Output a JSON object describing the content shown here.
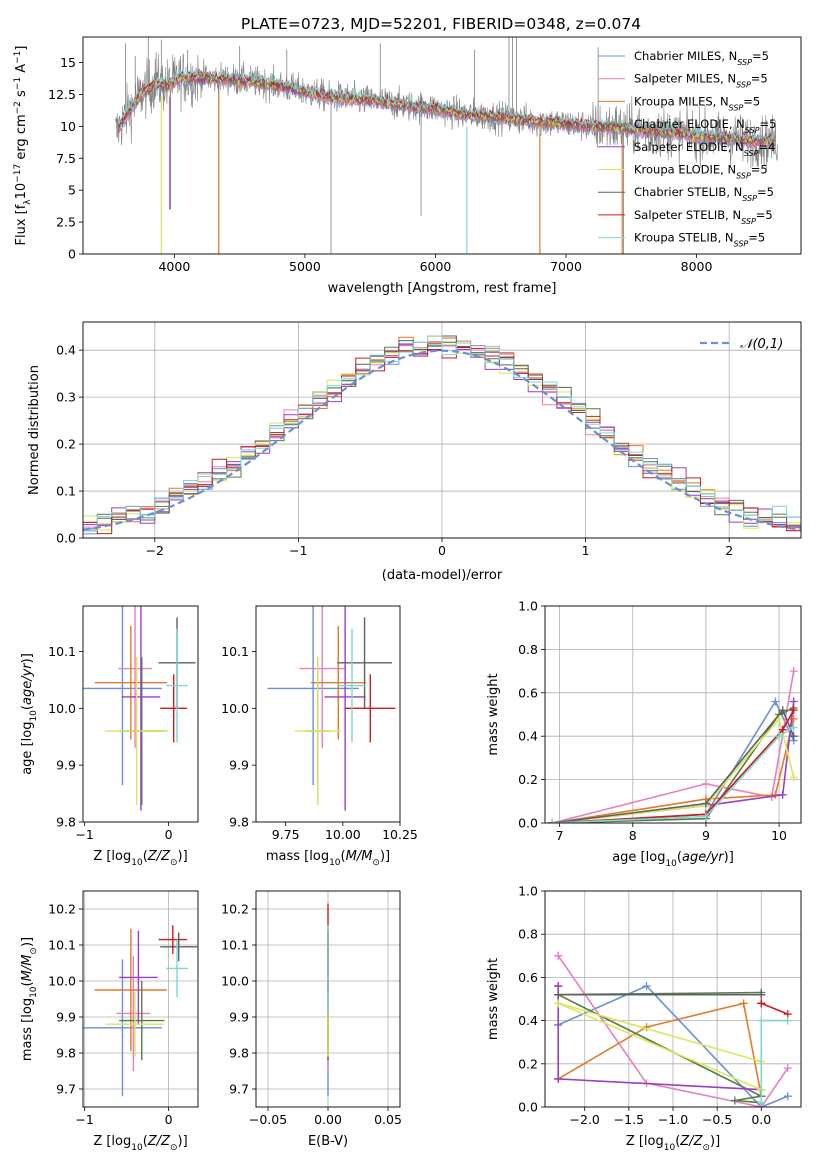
{
  "figure": {
    "title": "PLATE=0723, MJD=52201, FIBERID=0348, z=0.074"
  },
  "palette": [
    "#6a8fd8",
    "#e87fbf",
    "#e07b2a",
    "#5a7a4a",
    "#9a3fbf",
    "#d8e85a",
    "#606060",
    "#c81e1e",
    "#7fd6d6"
  ],
  "chart_data": [
    {
      "id": "spectrum",
      "type": "line",
      "xlabel": "wavelength [Angstrom, rest frame]",
      "ylabel": "Flux [f_λ 10^-17 erg cm^-2 s^-1 A^-1]",
      "xlim": [
        3300,
        8800
      ],
      "ylim": [
        0,
        17
      ],
      "xticks": [
        4000,
        5000,
        6000,
        7000,
        8000
      ],
      "yticks": [
        0.0,
        2.5,
        5.0,
        7.5,
        10.0,
        12.5,
        15.0
      ],
      "grid": false,
      "legend_position": "top-right",
      "series": [
        {
          "name": "Chabrier MILES, N_SSP=5"
        },
        {
          "name": "Salpeter MILES, N_SSP=5"
        },
        {
          "name": "Kroupa MILES, N_SSP=5"
        },
        {
          "name": "Chabrier ELODIE, N_SSP=5"
        },
        {
          "name": "Salpeter ELODIE, N_SSP=4"
        },
        {
          "name": "Kroupa ELODIE, N_SSP=5"
        },
        {
          "name": "Chabrier STELIB, N_SSP=5"
        },
        {
          "name": "Salpeter STELIB, N_SSP=5"
        },
        {
          "name": "Kroupa STELIB, N_SSP=5"
        }
      ],
      "model_continuum": {
        "x": [
          3550,
          3650,
          3750,
          3850,
          3950,
          4050,
          4200,
          4400,
          4600,
          4800,
          5000,
          5200,
          5400,
          5600,
          5800,
          6000,
          6200,
          6400,
          6600,
          6800,
          7000,
          7200,
          7400,
          7600,
          7800,
          8000,
          8200,
          8400,
          8600
        ],
        "y": [
          9.5,
          11.2,
          12.6,
          13.4,
          13.2,
          13.8,
          13.8,
          13.7,
          13.5,
          13.2,
          12.7,
          12.3,
          12.1,
          11.9,
          11.6,
          11.4,
          11.0,
          10.8,
          10.6,
          10.4,
          10.2,
          10.0,
          9.9,
          9.7,
          9.5,
          9.3,
          9.1,
          8.9,
          8.8
        ]
      },
      "observed_spikes": {
        "x": [
          3625,
          3700,
          3800,
          3860,
          3900,
          3970,
          4102,
          4340,
          4500,
          4861,
          5200,
          5577,
          5890,
          6300,
          6563,
          6590,
          6620,
          6800,
          7246,
          7440
        ],
        "y": [
          16.5,
          15.5,
          17.0,
          15.8,
          16.8,
          3.5,
          16.0,
          0.0,
          16.3,
          16.0,
          0.0,
          16.5,
          3.0,
          16.0,
          17.0,
          17.0,
          17.0,
          0.0,
          16.2,
          0.0
        ]
      }
    },
    {
      "id": "residuals",
      "type": "step-histogram",
      "xlabel": "(data-model)/error",
      "ylabel": "Normed distribution",
      "xlim": [
        -2.5,
        2.5
      ],
      "ylim": [
        0,
        0.46
      ],
      "xticks": [
        -2,
        -1,
        0,
        1,
        2
      ],
      "yticks": [
        0.0,
        0.1,
        0.2,
        0.3,
        0.4
      ],
      "grid": true,
      "legend": [
        {
          "name": "𝒩(0,1)"
        }
      ],
      "legend_position": "top-right",
      "bin_width": 0.1,
      "bin_start": -2.5
    },
    {
      "id": "age_vs_Z",
      "type": "errorbar",
      "xlabel": "Z [log10(Z/Z⊙)]",
      "ylabel": "age [log10(age/yr)]",
      "xlim": [
        -1.02,
        0.35
      ],
      "ylim": [
        9.8,
        10.18
      ],
      "xticks": [
        -1,
        0
      ],
      "yticks": [
        9.8,
        9.9,
        10.0,
        10.1
      ],
      "grid": false,
      "points": [
        {
          "x": -0.55,
          "xerr": 0.47,
          "y": 10.035,
          "yerr": 0.17
        },
        {
          "x": -0.4,
          "xerr": 0.2,
          "y": 10.07,
          "yerr": 0.14
        },
        {
          "x": -0.45,
          "xerr": 0.43,
          "y": 10.045,
          "yerr": 0.1
        },
        {
          "x": -0.32,
          "xerr": 0.27,
          "y": 9.96,
          "yerr": 0.13
        },
        {
          "x": -0.33,
          "xerr": 0.23,
          "y": 10.02,
          "yerr": 0.2
        },
        {
          "x": -0.38,
          "xerr": 0.38,
          "y": 9.96,
          "yerr": 0.13
        },
        {
          "x": 0.1,
          "xerr": 0.22,
          "y": 10.08,
          "yerr": 0.08
        },
        {
          "x": 0.06,
          "xerr": 0.16,
          "y": 10.0,
          "yerr": 0.06
        },
        {
          "x": 0.1,
          "xerr": 0.13,
          "y": 10.04,
          "yerr": 0.1
        }
      ]
    },
    {
      "id": "age_vs_mass",
      "type": "errorbar",
      "xlabel": "mass [log10(M/M⊙)]",
      "ylabel": "",
      "xlim": [
        9.62,
        10.25
      ],
      "ylim": [
        9.8,
        10.18
      ],
      "xticks": [
        9.75,
        10.0,
        10.25
      ],
      "yticks": [
        9.8,
        9.9,
        10.0,
        10.1
      ],
      "grid": false,
      "points": [
        {
          "x": 9.87,
          "xerr": 0.2,
          "y": 10.035,
          "yerr": 0.17
        },
        {
          "x": 9.91,
          "xerr": 0.1,
          "y": 10.07,
          "yerr": 0.14
        },
        {
          "x": 9.98,
          "xerr": 0.12,
          "y": 10.045,
          "yerr": 0.1
        },
        {
          "x": 9.89,
          "xerr": 0.05,
          "y": 9.96,
          "yerr": 0.13
        },
        {
          "x": 10.01,
          "xerr": 0.09,
          "y": 10.02,
          "yerr": 0.2
        },
        {
          "x": 9.89,
          "xerr": 0.1,
          "y": 9.96,
          "yerr": 0.13
        },
        {
          "x": 10.095,
          "xerr": 0.12,
          "y": 10.08,
          "yerr": 0.08
        },
        {
          "x": 10.12,
          "xerr": 0.11,
          "y": 10.0,
          "yerr": 0.06
        },
        {
          "x": 10.04,
          "xerr": 0.06,
          "y": 10.04,
          "yerr": 0.1
        }
      ]
    },
    {
      "id": "massweight_vs_age",
      "type": "line",
      "xlabel": "age [log10(age/yr)]",
      "ylabel": "mass weight",
      "xlim": [
        6.8,
        10.3
      ],
      "ylim": [
        0,
        1.0
      ],
      "xticks": [
        7,
        8,
        9,
        10
      ],
      "yticks": [
        0.0,
        0.2,
        0.4,
        0.6,
        0.8,
        1.0
      ],
      "grid": true,
      "series": [
        {
          "x": [
            6.9,
            9.0,
            9.95,
            10.2
          ],
          "y": [
            0.0,
            0.04,
            0.56,
            0.38
          ]
        },
        {
          "x": [
            6.9,
            9.0,
            9.9,
            10.2
          ],
          "y": [
            0.0,
            0.18,
            0.12,
            0.7
          ]
        },
        {
          "x": [
            6.9,
            9.0,
            9.95,
            10.2
          ],
          "y": [
            0.0,
            0.11,
            0.13,
            0.48
          ]
        },
        {
          "x": [
            6.9,
            9.0,
            10.0,
            10.2
          ],
          "y": [
            0.0,
            0.02,
            0.5,
            0.53
          ]
        },
        {
          "x": [
            6.9,
            9.0,
            10.05,
            10.2
          ],
          "y": [
            0.0,
            0.08,
            0.13,
            0.56
          ]
        },
        {
          "x": [
            6.9,
            9.0,
            10.0,
            10.2
          ],
          "y": [
            0.0,
            0.08,
            0.48,
            0.21
          ]
        },
        {
          "x": [
            6.9,
            9.0,
            10.05,
            10.2
          ],
          "y": [
            0.0,
            0.09,
            0.52,
            0.4
          ]
        },
        {
          "x": [
            6.9,
            9.0,
            10.05,
            10.2
          ],
          "y": [
            0.0,
            0.04,
            0.43,
            0.52
          ]
        },
        {
          "x": [
            6.9,
            9.0,
            10.0,
            10.2
          ],
          "y": [
            0.0,
            0.03,
            0.4,
            0.44
          ]
        }
      ]
    },
    {
      "id": "mass_vs_Z",
      "type": "errorbar",
      "xlabel": "Z [log10(Z/Z⊙)]",
      "ylabel": "mass [log10(M/M⊙)]",
      "xlim": [
        -1.02,
        0.35
      ],
      "ylim": [
        9.65,
        10.25
      ],
      "xticks": [
        -1,
        0
      ],
      "yticks": [
        9.7,
        9.8,
        9.9,
        10.0,
        10.1,
        10.2
      ],
      "grid": true,
      "points": [
        {
          "x": -0.55,
          "xerr": 0.47,
          "y": 9.87,
          "yerr": 0.19
        },
        {
          "x": -0.42,
          "xerr": 0.2,
          "y": 9.91,
          "yerr": 0.16
        },
        {
          "x": -0.45,
          "xerr": 0.43,
          "y": 9.975,
          "yerr": 0.17
        },
        {
          "x": -0.32,
          "xerr": 0.27,
          "y": 9.89,
          "yerr": 0.11
        },
        {
          "x": -0.36,
          "xerr": 0.23,
          "y": 10.01,
          "yerr": 0.13
        },
        {
          "x": -0.4,
          "xerr": 0.35,
          "y": 9.88,
          "yerr": 0.09
        },
        {
          "x": 0.12,
          "xerr": 0.22,
          "y": 10.095,
          "yerr": 0.04
        },
        {
          "x": 0.05,
          "xerr": 0.17,
          "y": 10.115,
          "yerr": 0.04
        },
        {
          "x": 0.1,
          "xerr": 0.13,
          "y": 10.035,
          "yerr": 0.08
        }
      ]
    },
    {
      "id": "mass_vs_ebv",
      "type": "errorbar",
      "xlabel": "E(B-V)",
      "ylabel": "",
      "xlim": [
        -0.06,
        0.06
      ],
      "ylim": [
        9.65,
        10.25
      ],
      "xticks": [
        -0.05,
        0.0,
        0.05
      ],
      "yticks": [
        9.7,
        9.8,
        9.9,
        10.0,
        10.1,
        10.2
      ],
      "grid": true,
      "points": [
        {
          "x": 0.0,
          "xerr": 0.0,
          "y": 9.87,
          "yerr": 0.19
        },
        {
          "x": 0.0,
          "xerr": 0.0,
          "y": 9.91,
          "yerr": 0.16
        },
        {
          "x": 0.0,
          "xerr": 0.0,
          "y": 9.975,
          "yerr": 0.17
        },
        {
          "x": 0.0,
          "xerr": 0.0,
          "y": 9.89,
          "yerr": 0.11
        },
        {
          "x": 0.0,
          "xerr": 0.0,
          "y": 10.01,
          "yerr": 0.13
        },
        {
          "x": 0.0,
          "xerr": 0.0,
          "y": 9.88,
          "yerr": 0.09
        },
        {
          "x": 0.0,
          "xerr": 0.0,
          "y": 10.095,
          "yerr": 0.04
        },
        {
          "x": 0.0,
          "xerr": 0.0,
          "y": 10.115,
          "yerr": 0.1
        },
        {
          "x": 0.0,
          "xerr": 0.0,
          "y": 10.035,
          "yerr": 0.12
        }
      ]
    },
    {
      "id": "massweight_vs_Z",
      "type": "line",
      "xlabel": "Z [log10(Z/Z⊙)]",
      "ylabel": "mass weight",
      "xlim": [
        -2.45,
        0.45
      ],
      "ylim": [
        0,
        1.0
      ],
      "xticks": [
        -2.0,
        -1.5,
        -1.0,
        -0.5,
        0.0
      ],
      "yticks": [
        0.0,
        0.2,
        0.4,
        0.6,
        0.8,
        1.0
      ],
      "grid": true,
      "series": [
        {
          "x": [
            0.3,
            0.0,
            -1.3,
            -2.3,
            -2.3
          ],
          "y": [
            0.05,
            0.0,
            0.56,
            0.38,
            0.38
          ]
        },
        {
          "x": [
            0.3,
            0.0,
            -1.3,
            -2.3,
            -2.3
          ],
          "y": [
            0.18,
            0.0,
            0.11,
            0.7,
            0.7
          ]
        },
        {
          "x": [
            0.0,
            -0.2,
            -1.3,
            -2.3,
            -2.3
          ],
          "y": [
            0.05,
            0.48,
            0.37,
            0.13,
            0.13
          ]
        },
        {
          "x": [
            0.0,
            -2.3,
            0.0,
            -0.3,
            0.0
          ],
          "y": [
            0.53,
            0.52,
            0.05,
            0.03,
            0.02
          ]
        },
        {
          "x": [
            0.0,
            -2.3,
            -2.3,
            -2.3
          ],
          "y": [
            0.08,
            0.13,
            0.56,
            0.56
          ]
        },
        {
          "x": [
            0.0,
            -2.3,
            0.0,
            0.0
          ],
          "y": [
            0.21,
            0.48,
            0.08,
            0.21
          ]
        },
        {
          "x": [
            0.0,
            -2.3,
            -2.3,
            0.0
          ],
          "y": [
            0.52,
            0.52,
            0.52,
            0.52
          ]
        },
        {
          "x": [
            0.3,
            0.0,
            0.0
          ],
          "y": [
            0.43,
            0.48,
            0.48
          ]
        },
        {
          "x": [
            0.3,
            0.0,
            0.0
          ],
          "y": [
            0.4,
            0.4,
            0.02
          ]
        }
      ]
    }
  ]
}
